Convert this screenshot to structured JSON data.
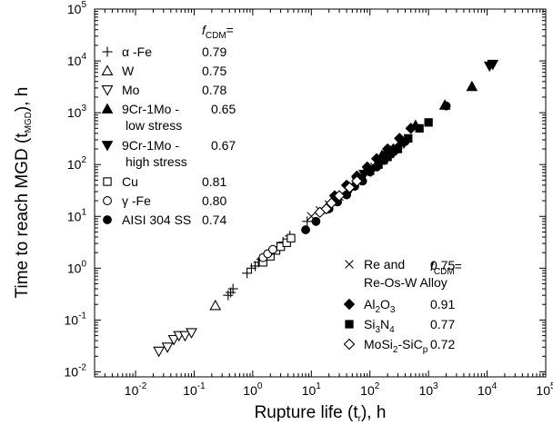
{
  "chart_data": {
    "type": "scatter",
    "title": "",
    "xlabel": "Rupture life (t_r), h",
    "ylabel": "Time to reach MGD (t_MGD), h",
    "xscale": "log",
    "yscale": "log",
    "xlim": [
      0.002,
      100000
    ],
    "ylim": [
      0.008,
      100000
    ],
    "x_ticks": [
      {
        "base": "10",
        "exp": "-2",
        "value": 0.01
      },
      {
        "base": "10",
        "exp": "-1",
        "value": 0.1
      },
      {
        "base": "10",
        "exp": "0",
        "value": 1
      },
      {
        "base": "10",
        "exp": "1",
        "value": 10
      },
      {
        "base": "10",
        "exp": "2",
        "value": 100
      },
      {
        "base": "10",
        "exp": "3",
        "value": 1000
      },
      {
        "base": "10",
        "exp": "4",
        "value": 10000
      },
      {
        "base": "10",
        "exp": "5",
        "value": 100000
      }
    ],
    "y_ticks": [
      {
        "base": "10",
        "exp": "-2",
        "value": 0.01
      },
      {
        "base": "10",
        "exp": "-1",
        "value": 0.1
      },
      {
        "base": "10",
        "exp": "0",
        "value": 1
      },
      {
        "base": "10",
        "exp": "1",
        "value": 10
      },
      {
        "base": "10",
        "exp": "2",
        "value": 100
      },
      {
        "base": "10",
        "exp": "3",
        "value": 1000
      },
      {
        "base": "10",
        "exp": "4",
        "value": 10000
      },
      {
        "base": "10",
        "exp": "5",
        "value": 100000
      }
    ],
    "legend_header": "f_CDM=",
    "legend_placement": [
      "top-left",
      "bottom-right"
    ],
    "series": [
      {
        "name": "α -Fe",
        "marker": "plus",
        "fcdm": "0.79",
        "legend": 0,
        "x": [
          0.38,
          0.42,
          0.46,
          0.8,
          0.95,
          1.1,
          1.25,
          1.4,
          1.6,
          2.1,
          2.6,
          3.3,
          4.3,
          8.5
        ],
        "y": [
          0.3,
          0.34,
          0.4,
          0.8,
          1.0,
          1.1,
          1.3,
          1.5,
          1.7,
          2.2,
          2.6,
          3.2,
          4.2,
          8.0
        ]
      },
      {
        "name": "W",
        "marker": "triangle-up-open",
        "fcdm": "0.75",
        "legend": 0,
        "x": [
          0.23
        ],
        "y": [
          0.19
        ]
      },
      {
        "name": "Mo",
        "marker": "triangle-down-open",
        "fcdm": "0.78",
        "legend": 0,
        "x": [
          0.025,
          0.035,
          0.045,
          0.055,
          0.07,
          0.09
        ],
        "y": [
          0.025,
          0.03,
          0.042,
          0.05,
          0.05,
          0.057
        ]
      },
      {
        "name": "9Cr-1Mo -",
        "name_line2": "low stress",
        "marker": "triangle-up-filled",
        "fcdm": "0.65",
        "legend": 0,
        "x": [
          160,
          250,
          340,
          600,
          1900,
          5500
        ],
        "y": [
          150,
          200,
          280,
          570,
          1400,
          3200
        ]
      },
      {
        "name": "9Cr-1Mo -",
        "name_line2": "high stress",
        "marker": "triangle-down-filled",
        "fcdm": "0.67",
        "legend": 0,
        "x": [
          45,
          60,
          80,
          110,
          150,
          200,
          280,
          380,
          11000,
          12500
        ],
        "y": [
          32,
          48,
          65,
          80,
          110,
          150,
          190,
          260,
          8000,
          8600
        ]
      },
      {
        "name": "Cu",
        "marker": "square-open",
        "fcdm": "0.81",
        "legend": 0,
        "x": [
          1.5,
          2.0,
          2.5,
          3.0,
          3.8,
          4.5
        ],
        "y": [
          1.3,
          1.7,
          2.2,
          2.6,
          3.1,
          3.8
        ]
      },
      {
        "name": "γ -Fe",
        "marker": "circle-open",
        "fcdm": "0.80",
        "legend": 0,
        "x": [
          1.5,
          1.8,
          2.2
        ],
        "y": [
          1.6,
          1.9,
          2.3
        ]
      },
      {
        "name": "AISI 304 SS",
        "marker": "circle-filled",
        "fcdm": "0.74",
        "legend": 0,
        "x": [
          8,
          12,
          20,
          28,
          40,
          55,
          75,
          100,
          130,
          175,
          230,
          300,
          400,
          2000
        ],
        "y": [
          5.5,
          8,
          14,
          19,
          26,
          38,
          48,
          72,
          90,
          120,
          160,
          210,
          280,
          1350
        ]
      },
      {
        "name": "Re and",
        "name_line2": "Re-Os-W Alloy",
        "marker": "cross",
        "fcdm": "0.75",
        "legend": 1,
        "x": [
          10,
          14,
          20,
          30,
          60,
          90,
          120,
          170,
          220,
          280,
          450
        ],
        "y": [
          10,
          13,
          17,
          24,
          48,
          70,
          90,
          120,
          160,
          200,
          320
        ]
      },
      {
        "name": "Al2O3",
        "name_parts": [
          "Al",
          "2",
          "O",
          "3"
        ],
        "marker": "diamond-filled",
        "fcdm": "0.91",
        "legend": 1,
        "x": [
          25,
          40,
          60,
          90,
          130,
          200,
          320,
          500
        ],
        "y": [
          25,
          40,
          60,
          90,
          130,
          200,
          320,
          500
        ]
      },
      {
        "name": "Si3N4",
        "name_parts": [
          "Si",
          "3",
          "N",
          "4"
        ],
        "marker": "square-filled",
        "fcdm": "0.77",
        "legend": 1,
        "x": [
          100,
          140,
          200,
          300,
          450,
          700,
          1000
        ],
        "y": [
          75,
          100,
          140,
          200,
          320,
          500,
          650
        ]
      },
      {
        "name": "MoSi2-SiCp",
        "name_parts": [
          "MoSi",
          "2",
          "-SiC",
          "p"
        ],
        "marker": "diamond-open",
        "fcdm": "0.72",
        "legend": 1,
        "x": [
          14,
          18,
          22,
          30,
          45,
          60
        ],
        "y": [
          12,
          14,
          18,
          25,
          36,
          48
        ]
      }
    ]
  }
}
